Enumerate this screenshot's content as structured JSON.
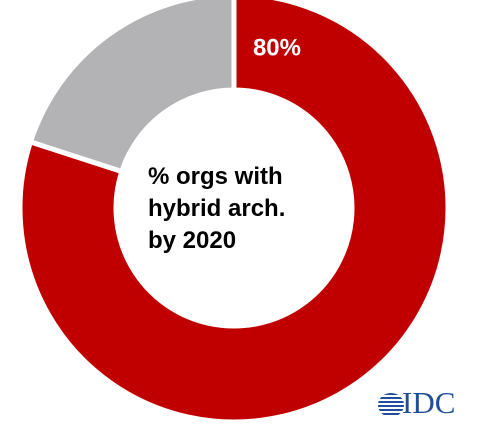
{
  "chart_data": {
    "type": "pie",
    "variant": "donut",
    "slices": [
      {
        "value": 80,
        "label": "80%",
        "color": "#c00000"
      },
      {
        "value": 20,
        "label": "",
        "color": "#b3b3b5"
      }
    ],
    "center_text": [
      "% orgs with",
      "hybrid arch.",
      "by 2020"
    ]
  },
  "logo": {
    "text": "IDC",
    "color": "#1f4e9a"
  }
}
